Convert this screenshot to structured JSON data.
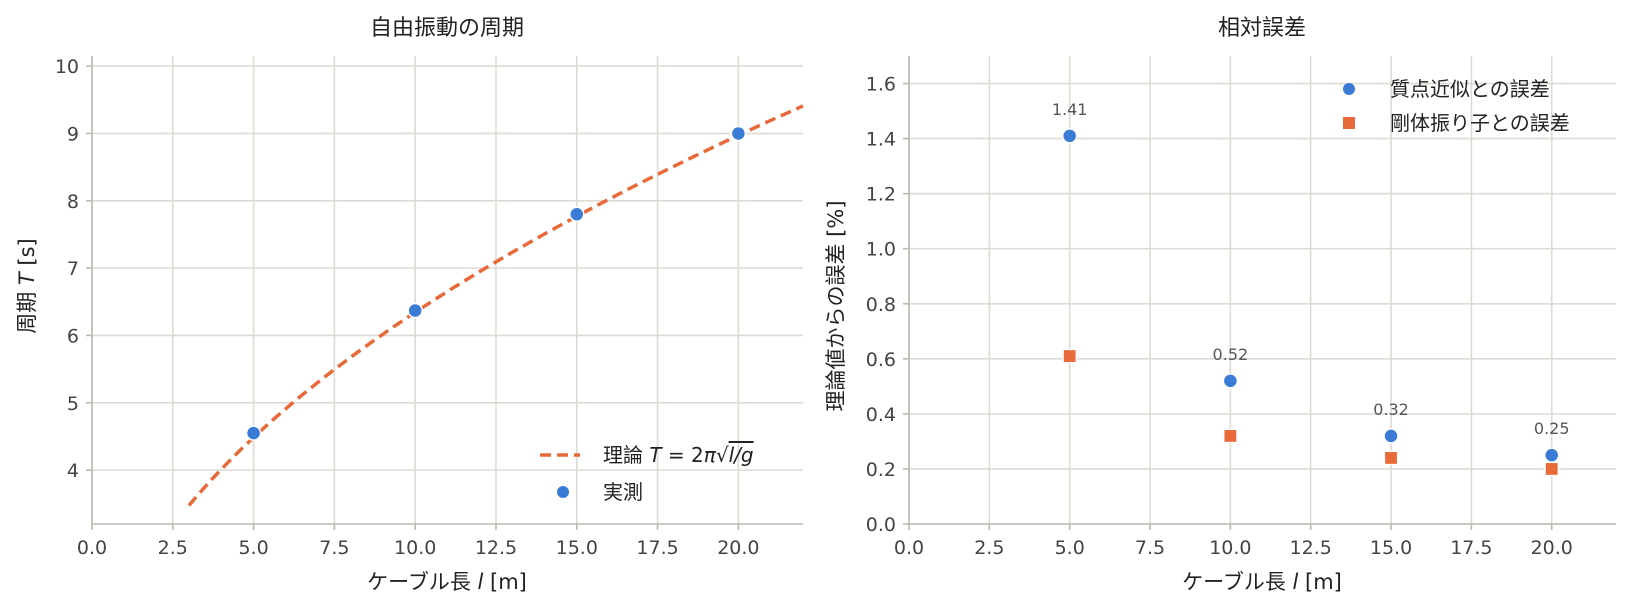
{
  "colors": {
    "measured": "#3a7bd5",
    "theory": "#e8693a",
    "rigid": "#e8693a",
    "grid": "#dedbd3"
  },
  "chart_data": [
    {
      "type": "scatter",
      "title": "自由振動の周期",
      "xlabel_pre": "ケーブル長 ",
      "xlabel_var": "l",
      "xlabel_post": " [m]",
      "ylabel_pre": "周期 ",
      "ylabel_var": "T",
      "ylabel_post": " [s]",
      "xlim": [
        0,
        22
      ],
      "ylim": [
        3.2,
        10.15
      ],
      "xticks": [
        "0.0",
        "2.5",
        "5.0",
        "7.5",
        "10.0",
        "12.5",
        "15.0",
        "17.5",
        "20.0"
      ],
      "yticks": [
        "4",
        "5",
        "6",
        "7",
        "8",
        "9",
        "10"
      ],
      "series": [
        {
          "name_pre": "理論 ",
          "name_math": "T = 2π√l/g",
          "kind": "line",
          "style": "dashed",
          "x_range": [
            3,
            22
          ],
          "g": 9.81
        },
        {
          "name": "実測",
          "kind": "scatter",
          "x": [
            5,
            10,
            15,
            20
          ],
          "y": [
            4.55,
            6.37,
            7.8,
            9.0
          ]
        }
      ],
      "legend": "lower-right",
      "grid": true
    },
    {
      "type": "scatter",
      "title": "相対誤差",
      "xlabel_pre": "ケーブル長 ",
      "xlabel_var": "l",
      "xlabel_post": " [m]",
      "ylabel": "理論値からの誤差 [%]",
      "xlim": [
        0,
        22
      ],
      "ylim": [
        0,
        1.7
      ],
      "xticks": [
        "0.0",
        "2.5",
        "5.0",
        "7.5",
        "10.0",
        "12.5",
        "15.0",
        "17.5",
        "20.0"
      ],
      "yticks": [
        "0.0",
        "0.2",
        "0.4",
        "0.6",
        "0.8",
        "1.0",
        "1.2",
        "1.4",
        "1.6"
      ],
      "series": [
        {
          "name": "質点近似との誤差",
          "marker": "circle",
          "x": [
            5,
            10,
            15,
            20
          ],
          "y": [
            1.41,
            0.52,
            0.32,
            0.25
          ],
          "labels": [
            "1.41",
            "0.52",
            "0.32",
            "0.25"
          ]
        },
        {
          "name": "剛体振り子との誤差",
          "marker": "square",
          "x": [
            5,
            10,
            15,
            20
          ],
          "y": [
            0.61,
            0.32,
            0.24,
            0.2
          ]
        }
      ],
      "legend": "top-right",
      "grid": true
    }
  ]
}
